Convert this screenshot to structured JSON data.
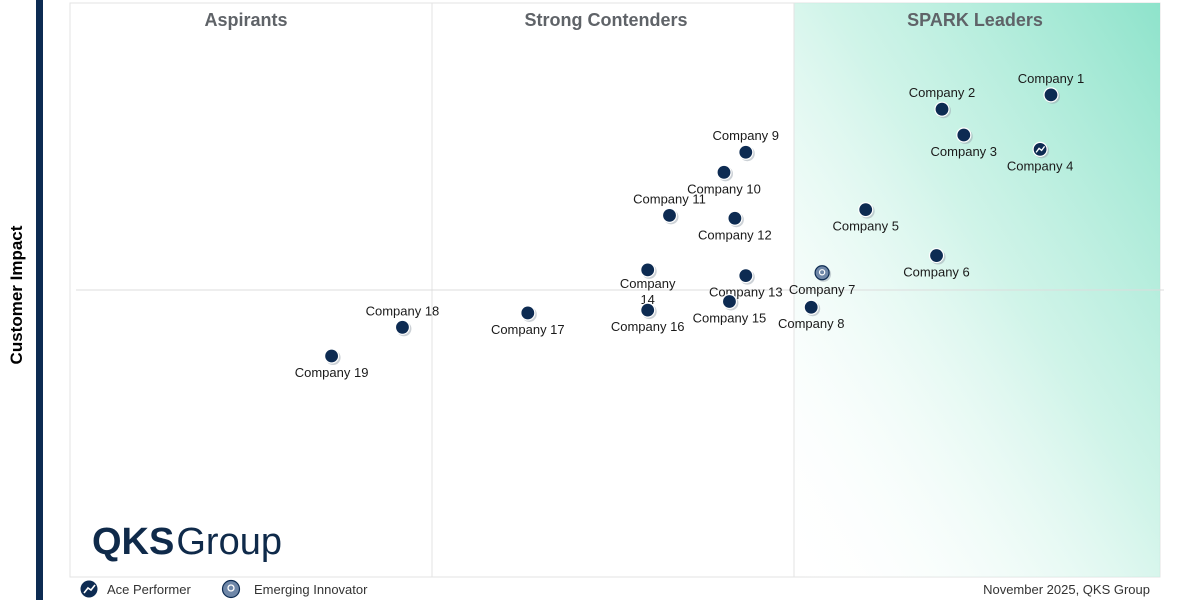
{
  "chart_data": {
    "type": "scatter",
    "ylabel": "Customer Impact",
    "quadrants": [
      "Aspirants",
      "Strong Contenders",
      "SPARK Leaders"
    ],
    "grid": "quadrant dividers",
    "points": [
      {
        "name": "Company 1",
        "x": 9.0,
        "y": 8.4,
        "category": "default"
      },
      {
        "name": "Company 2",
        "x": 8.0,
        "y": 8.15,
        "category": "default"
      },
      {
        "name": "Company 3",
        "x": 8.2,
        "y": 7.7,
        "category": "default"
      },
      {
        "name": "Company 4",
        "x": 8.9,
        "y": 7.45,
        "category": "Ace Performer"
      },
      {
        "name": "Company 9",
        "x": 6.2,
        "y": 7.4,
        "category": "default"
      },
      {
        "name": "Company 10",
        "x": 6.0,
        "y": 7.05,
        "category": "default"
      },
      {
        "name": "Company 11",
        "x": 5.5,
        "y": 6.3,
        "category": "default"
      },
      {
        "name": "Company 12",
        "x": 6.1,
        "y": 6.25,
        "category": "default"
      },
      {
        "name": "Company 5",
        "x": 7.3,
        "y": 6.4,
        "category": "default"
      },
      {
        "name": "Company 6",
        "x": 7.95,
        "y": 5.6,
        "category": "default"
      },
      {
        "name": "Company 7",
        "x": 6.9,
        "y": 5.3,
        "category": "Emerging Innovator"
      },
      {
        "name": "Company 14",
        "x": 5.3,
        "y": 5.35,
        "category": "default"
      },
      {
        "name": "Company 13",
        "x": 6.2,
        "y": 5.25,
        "category": "default"
      },
      {
        "name": "Company 15",
        "x": 6.05,
        "y": 4.8,
        "category": "default"
      },
      {
        "name": "Company 8",
        "x": 6.8,
        "y": 4.7,
        "category": "default"
      },
      {
        "name": "Company 16",
        "x": 5.3,
        "y": 4.65,
        "category": "default"
      },
      {
        "name": "Company 17",
        "x": 4.2,
        "y": 4.6,
        "category": "default"
      },
      {
        "name": "Company 18",
        "x": 3.05,
        "y": 4.35,
        "category": "default"
      },
      {
        "name": "Company 19",
        "x": 2.4,
        "y": 3.85,
        "category": "default"
      }
    ],
    "legend": [
      {
        "label": "Ace Performer",
        "icon": "trend-up-icon"
      },
      {
        "label": "Emerging Innovator",
        "icon": "bulb-icon"
      }
    ],
    "footer": "November 2025, QKS Group"
  },
  "logo": {
    "bold": "QKS",
    "regular": "Group"
  },
  "colors": {
    "dot": "#0d2b52",
    "accent_bar": "#0d2b52",
    "leader_gradient": "#92e6cf",
    "innovator": "#6f87a8"
  }
}
